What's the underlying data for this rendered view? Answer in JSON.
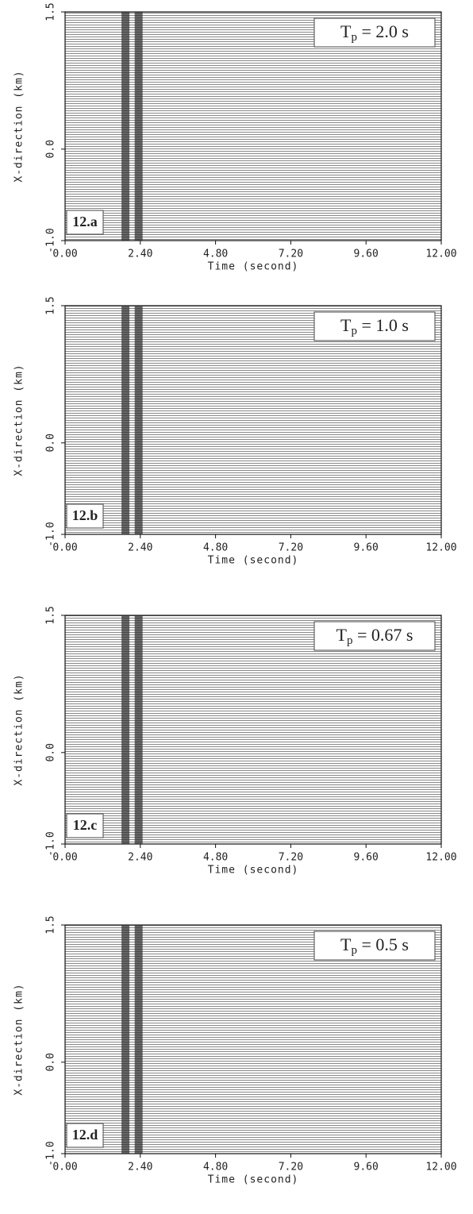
{
  "chart_data": [
    {
      "type": "seismogram",
      "panel_label": "12.a",
      "annotation": {
        "symbol": "T",
        "subscript": "p",
        "rest": " = 2.0 s"
      },
      "xlabel": "Time (second)",
      "ylabel": "X-direction (km)",
      "xlim": [
        0,
        12
      ],
      "ylim": [
        -1,
        1.5
      ],
      "xticks": [
        {
          "value": 0,
          "label": "0.00"
        },
        {
          "value": 2.4,
          "label": "2.40"
        },
        {
          "value": 4.8,
          "label": "4.80"
        },
        {
          "value": 7.2,
          "label": "7.20"
        },
        {
          "value": 9.6,
          "label": "9.60"
        },
        {
          "value": 12,
          "label": "12.00"
        }
      ],
      "yticks": [
        {
          "value": -1,
          "label": "-1.0"
        },
        {
          "value": 0,
          "label": "0.0"
        },
        1.5
      ]
    },
    {
      "type": "seismogram",
      "panel_label": "12.b",
      "annotation": {
        "symbol": "T",
        "subscript": "p",
        "rest": " = 1.0 s"
      },
      "xlabel": "Time (second)",
      "ylabel": "X-direction (km)",
      "xlim": [
        0,
        12
      ],
      "ylim": [
        -1,
        1.5
      ],
      "xticks": [
        {
          "value": 0,
          "label": "0.00"
        },
        {
          "value": 2.4,
          "label": "2.40"
        },
        {
          "value": 4.8,
          "label": "4.80"
        },
        {
          "value": 7.2,
          "label": "7.20"
        },
        {
          "value": 9.6,
          "label": "9.60"
        },
        {
          "value": 12,
          "label": "12.00"
        }
      ],
      "yticks": [
        {
          "value": -1,
          "label": "-1.0"
        },
        {
          "value": 0,
          "label": "0.0"
        },
        1.5
      ]
    },
    {
      "type": "seismogram",
      "panel_label": "12.c",
      "annotation": {
        "symbol": "T",
        "subscript": "p",
        "rest": " = 0.67 s"
      },
      "xlabel": "Time (second)",
      "ylabel": "X-direction (km)",
      "xlim": [
        0,
        12
      ],
      "ylim": [
        -1,
        1.5
      ],
      "xticks": [
        {
          "value": 0,
          "label": "0.00"
        },
        {
          "value": 2.4,
          "label": "2.40"
        },
        {
          "value": 4.8,
          "label": "4.80"
        },
        {
          "value": 7.2,
          "label": "7.20"
        },
        {
          "value": 9.6,
          "label": "9.60"
        },
        {
          "value": 12,
          "label": "12.00"
        }
      ],
      "yticks": [
        {
          "value": -1,
          "label": "-1.0"
        },
        {
          "value": 0,
          "label": "0.0"
        },
        1.5
      ]
    },
    {
      "type": "seismogram",
      "panel_label": "12.d",
      "annotation": {
        "symbol": "T",
        "subscript": "p",
        "rest": " = 0.5 s"
      },
      "xlabel": "Time (second)",
      "ylabel": "X-direction (km)",
      "xlim": [
        0,
        12
      ],
      "ylim": [
        -1,
        1.5
      ],
      "xticks": [
        {
          "value": 0,
          "label": "0.00"
        },
        {
          "value": 2.4,
          "label": "2.40"
        },
        {
          "value": 4.8,
          "label": "4.80"
        },
        {
          "value": 7.2,
          "label": "7.20"
        },
        {
          "value": 9.6,
          "label": "9.60"
        },
        {
          "value": 12,
          "label": "12.00"
        }
      ],
      "yticks": [
        {
          "value": -1,
          "label": "-1.0"
        },
        {
          "value": 0,
          "label": "0.0"
        },
        1.5
      ]
    }
  ]
}
